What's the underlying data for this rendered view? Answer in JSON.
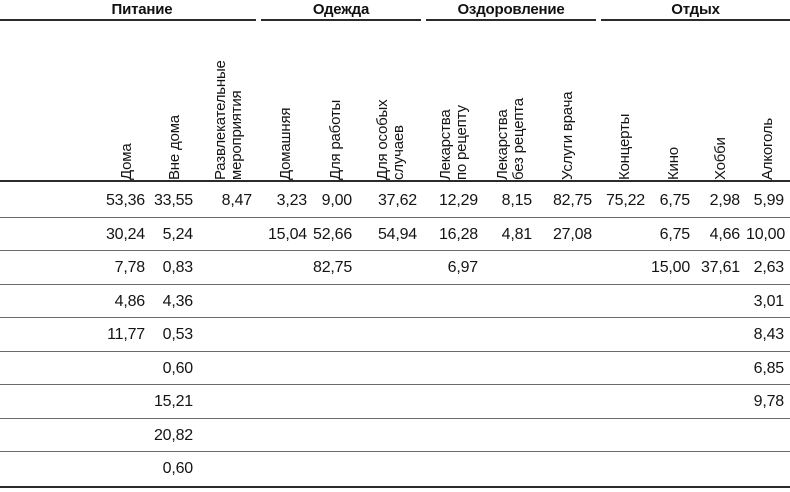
{
  "table": {
    "groups": [
      {
        "label": "Питание"
      },
      {
        "label": "Одежда"
      },
      {
        "label": "Оздоровление"
      },
      {
        "label": "Отдых"
      }
    ],
    "columns": [
      {
        "label": "",
        "name": "row-label"
      },
      {
        "label": "Дома",
        "name": "doma"
      },
      {
        "label": "Вне дома",
        "name": "vne-doma"
      },
      {
        "label": "Развлекательные\nмероприятия",
        "name": "razvlekatelnye-meropriyatiya"
      },
      {
        "label": "Домашняя",
        "name": "domashnyaya"
      },
      {
        "label": "Для работы",
        "name": "dlya-raboty"
      },
      {
        "label": "Для особых\nслучаев",
        "name": "dlya-osobyh-sluchaev"
      },
      {
        "label": "Лекарства\nпо рецепту",
        "name": "lekarstva-po-receptu"
      },
      {
        "label": "Лекарства\nбез рецепта",
        "name": "lekarstva-bez-recepta"
      },
      {
        "label": "Услуги врача",
        "name": "uslugi-vracha"
      },
      {
        "label": "Концерты",
        "name": "koncerty"
      },
      {
        "label": "Кино",
        "name": "kino"
      },
      {
        "label": "Хобби",
        "name": "hobbi"
      },
      {
        "label": "Алкоголь",
        "name": "alkogol"
      }
    ],
    "rows": [
      [
        "",
        "53,36",
        "33,55",
        "8,47",
        "3,23",
        "9,00",
        "37,62",
        "12,29",
        "8,15",
        "82,75",
        "75,22",
        "6,75",
        "2,98",
        "5,99"
      ],
      [
        "",
        "30,24",
        "5,24",
        "",
        "15,04",
        "52,66",
        "54,94",
        "16,28",
        "4,81",
        "27,08",
        "",
        "6,75",
        "4,66",
        "10,00"
      ],
      [
        "",
        "7,78",
        "0,83",
        "",
        "",
        "82,75",
        "",
        "6,97",
        "",
        "",
        "",
        "15,00",
        "37,61",
        "2,63"
      ],
      [
        "",
        "4,86",
        "4,36",
        "",
        "",
        "",
        "",
        "",
        "",
        "",
        "",
        "",
        "",
        "3,01"
      ],
      [
        "",
        "11,77",
        "0,53",
        "",
        "",
        "",
        "",
        "",
        "",
        "",
        "",
        "",
        "",
        "8,43"
      ],
      [
        "",
        "",
        "0,60",
        "",
        "",
        "",
        "",
        "",
        "",
        "",
        "",
        "",
        "",
        "6,85"
      ],
      [
        "",
        "",
        "15,21",
        "",
        "",
        "",
        "",
        "",
        "",
        "",
        "",
        "",
        "",
        "9,78"
      ],
      [
        "",
        "",
        "20,82",
        "",
        "",
        "",
        "",
        "",
        "",
        "",
        "",
        "",
        "",
        ""
      ],
      [
        "",
        "",
        "0,60",
        "",
        "",
        "",
        "",
        "",
        "",
        "",
        "",
        "",
        "",
        ""
      ]
    ]
  },
  "colors": {
    "text": "#141414",
    "rule_heavy": "#2b2b2b",
    "rule_light": "#6a6a6a",
    "background": "#ffffff"
  }
}
